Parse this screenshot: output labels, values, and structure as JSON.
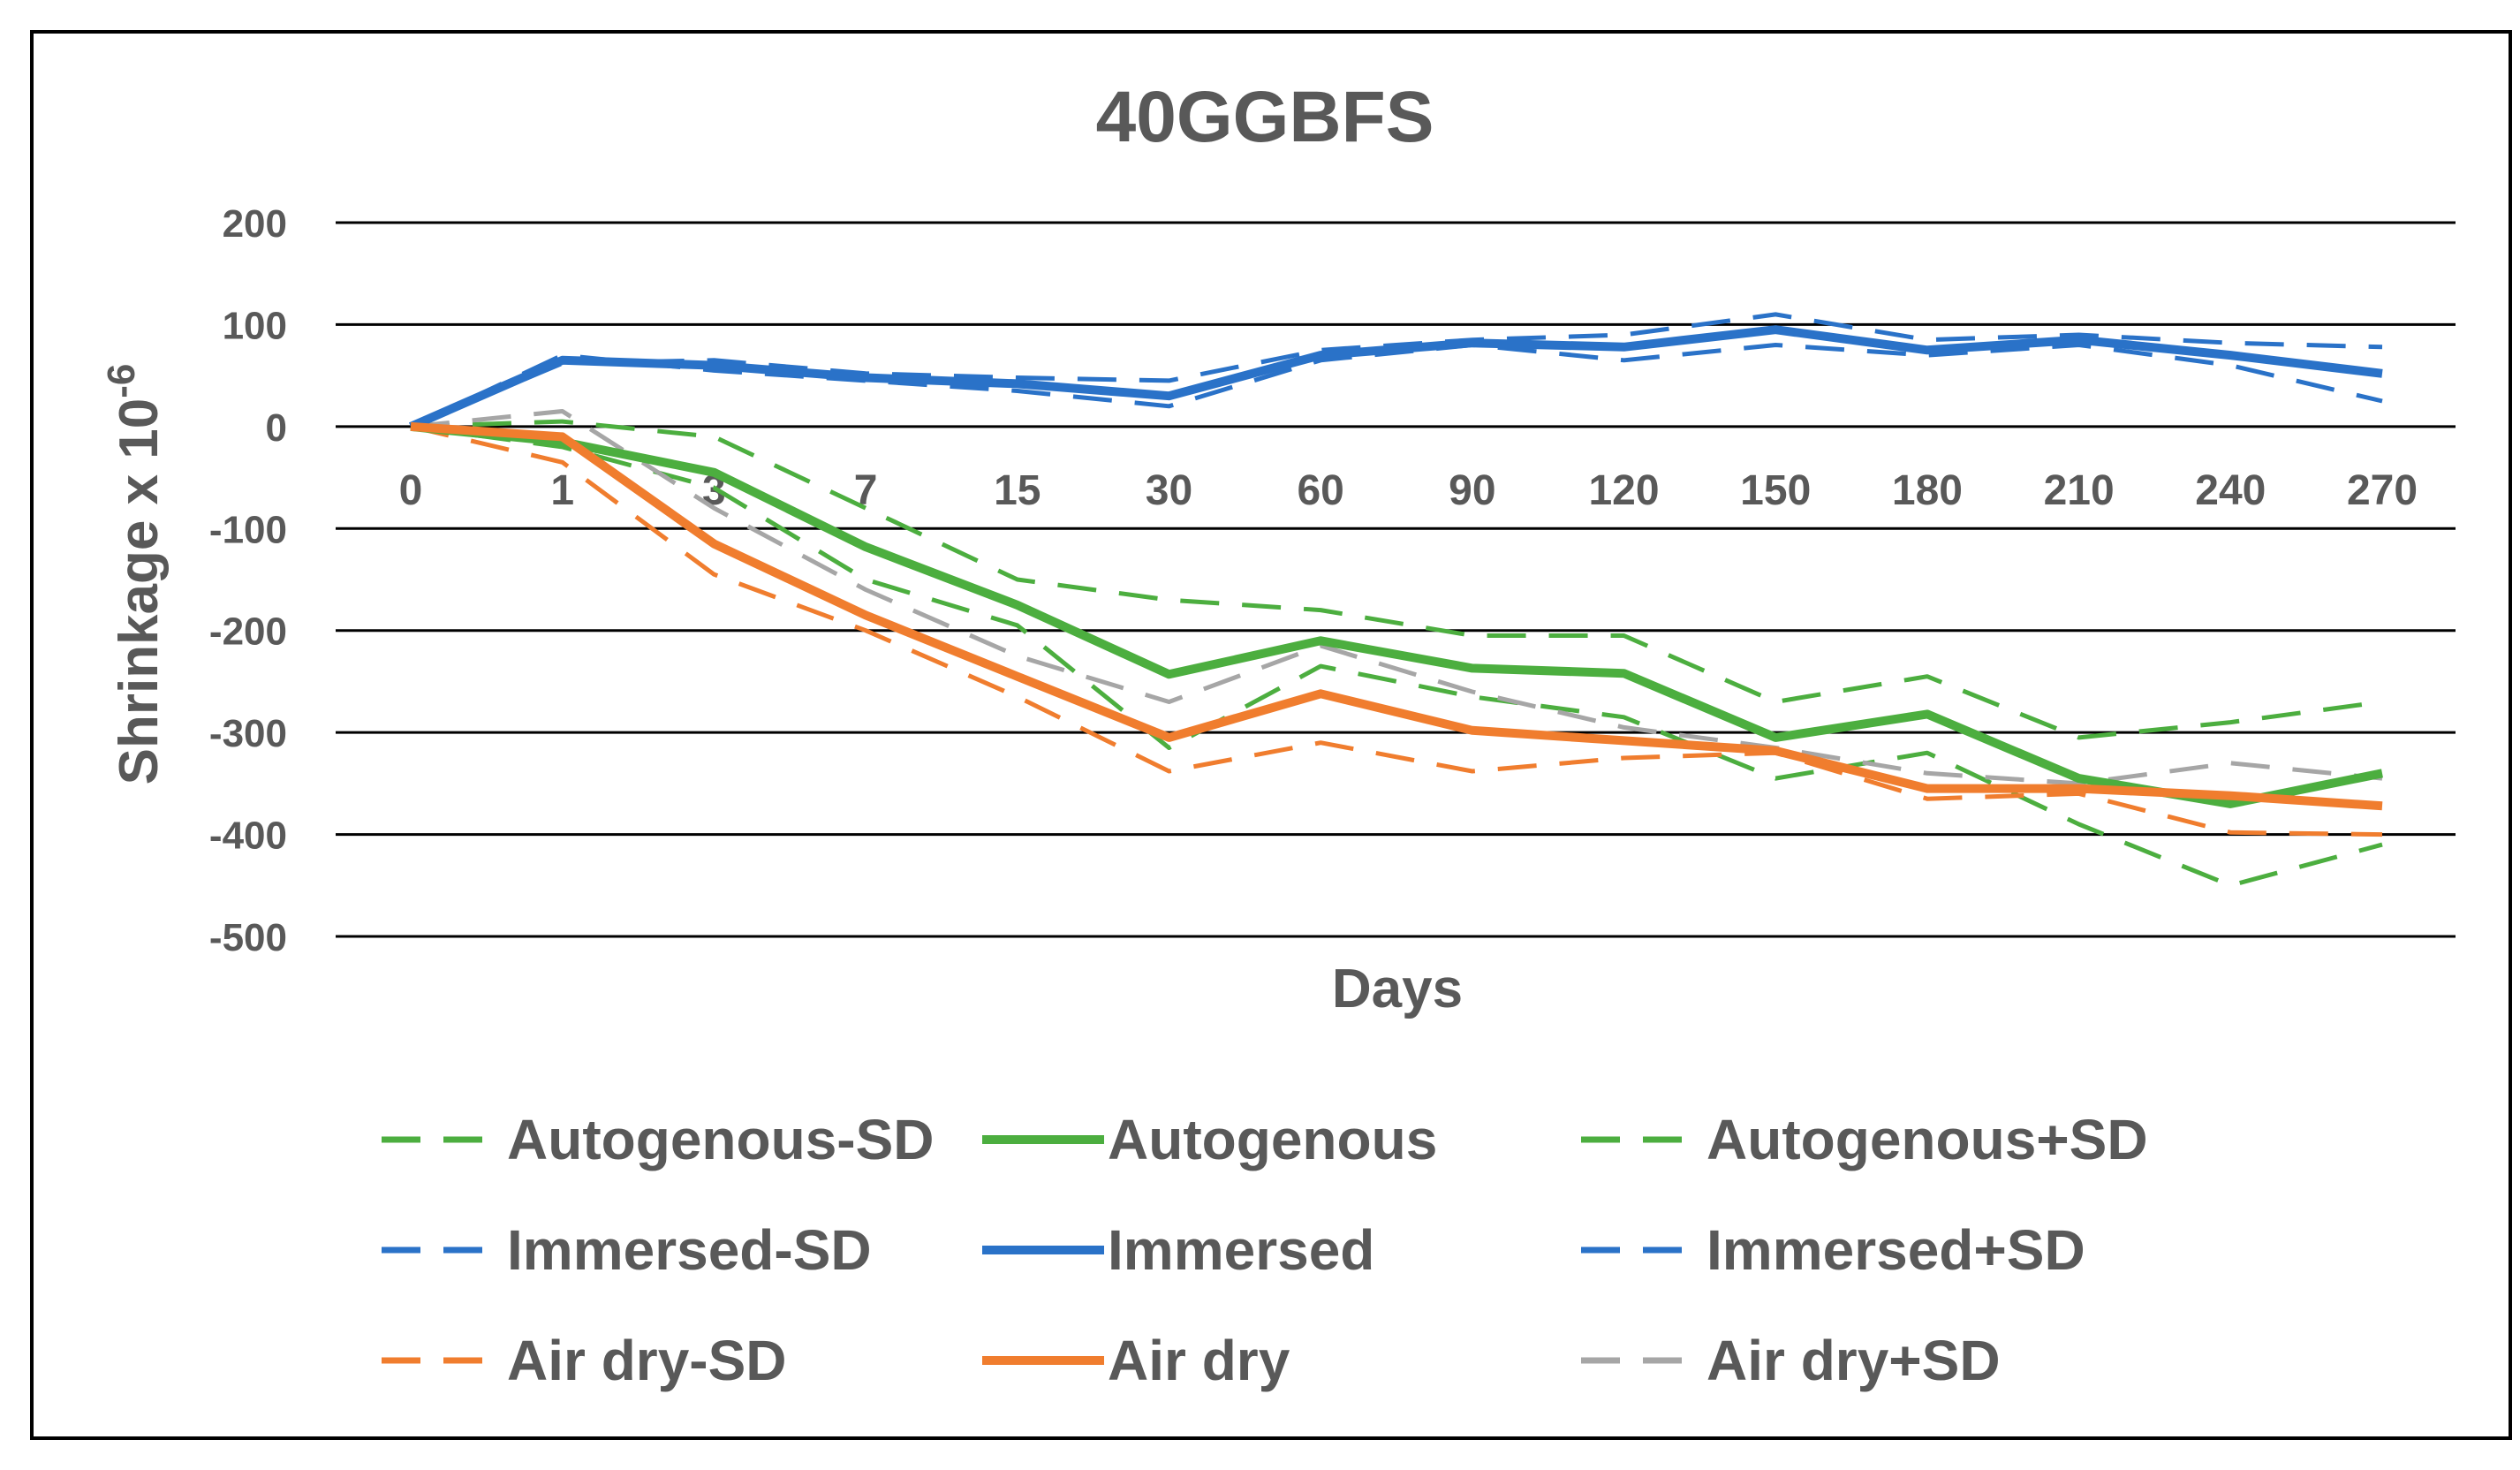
{
  "chart_data": {
    "type": "line",
    "title": "40GGBFS",
    "xlabel": "Days",
    "ylabel": "Shrinkage x 10",
    "ylabel_exponent": "-6",
    "ylim": [
      -500,
      200
    ],
    "yticks": [
      200,
      100,
      0,
      -100,
      -200,
      -300,
      -400,
      -500
    ],
    "ytick_labels": [
      "200",
      "100",
      "0",
      "-100",
      "-200",
      "-300",
      "-400",
      "-500"
    ],
    "grid": true,
    "legend_position": "bottom",
    "categories": [
      "0",
      "1",
      "3",
      "7",
      "15",
      "30",
      "60",
      "90",
      "120",
      "150",
      "180",
      "210",
      "240",
      "270"
    ],
    "series": [
      {
        "name": "Autogenous-SD",
        "color": "#4cae3f",
        "dash": "dashed",
        "values": [
          0,
          -20,
          -60,
          -150,
          -195,
          -315,
          -235,
          -265,
          -285,
          -345,
          -320,
          -390,
          -450,
          -410
        ]
      },
      {
        "name": "Autogenous",
        "color": "#4cae3f",
        "dash": "solid",
        "values": [
          0,
          -15,
          -45,
          -118,
          -175,
          -243,
          -210,
          -237,
          -242,
          -305,
          -282,
          -345,
          -370,
          -340
        ]
      },
      {
        "name": "Autogenous+SD",
        "color": "#4cae3f",
        "dash": "dashed",
        "values": [
          0,
          5,
          -10,
          -80,
          -150,
          -170,
          -180,
          -205,
          -205,
          -270,
          -245,
          -305,
          -290,
          -270
        ]
      },
      {
        "name": "Immersed-SD",
        "color": "#2a72c8",
        "dash": "dashed",
        "values": [
          0,
          70,
          55,
          45,
          35,
          20,
          65,
          80,
          65,
          80,
          70,
          80,
          60,
          25
        ]
      },
      {
        "name": "Immersed",
        "color": "#2a72c8",
        "dash": "solid",
        "values": [
          0,
          65,
          60,
          48,
          42,
          30,
          70,
          82,
          78,
          95,
          75,
          85,
          70,
          52
        ]
      },
      {
        "name": "Immersed+SD",
        "color": "#2a72c8",
        "dash": "dashed",
        "values": [
          0,
          62,
          65,
          52,
          48,
          45,
          75,
          85,
          90,
          110,
          85,
          90,
          82,
          78
        ]
      },
      {
        "name": "Air dry-SD",
        "color": "#f07d2e",
        "dash": "dashed",
        "values": [
          0,
          -35,
          -145,
          -200,
          -265,
          -338,
          -310,
          -338,
          -325,
          -320,
          -365,
          -360,
          -398,
          -400
        ]
      },
      {
        "name": "Air dry",
        "color": "#f07d2e",
        "dash": "solid",
        "values": [
          0,
          -10,
          -115,
          -185,
          -245,
          -305,
          -262,
          -298,
          -308,
          -318,
          -355,
          -355,
          -362,
          -372
        ]
      },
      {
        "name": "Air dry+SD",
        "color": "#a6a6a6",
        "dash": "dashed",
        "values": [
          0,
          15,
          -80,
          -160,
          -225,
          -270,
          -215,
          -260,
          -295,
          -315,
          -340,
          -350,
          -330,
          -345
        ]
      }
    ]
  }
}
